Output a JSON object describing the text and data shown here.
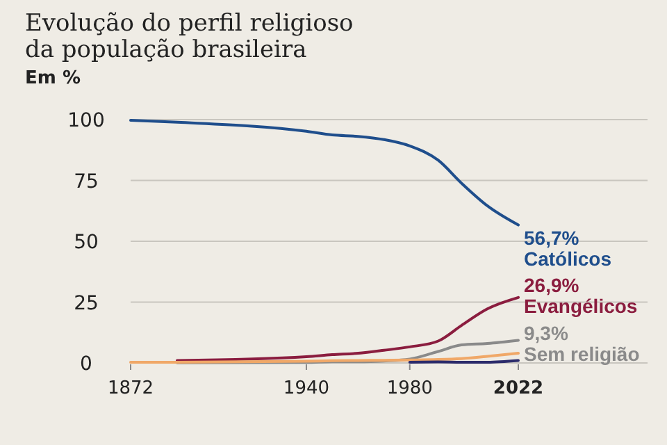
{
  "chart_data": {
    "type": "line",
    "title": "Evolução do perfil religioso da população brasileira",
    "subtitle": "Em %",
    "xlim": [
      1872,
      2072
    ],
    "xticks": [
      1872,
      1940,
      1980,
      2022
    ],
    "ylim": [
      0,
      100
    ],
    "yticks": [
      0,
      25,
      50,
      75,
      100
    ],
    "grid": "y",
    "series": [
      {
        "name": "Católicos",
        "color": "#1f4e8c",
        "x": [
          1872,
          1890,
          1940,
          1950,
          1960,
          1970,
          1980,
          1991,
          2000,
          2010,
          2022
        ],
        "values": [
          99.7,
          98.9,
          95.2,
          93.7,
          93.1,
          91.8,
          89.2,
          83.3,
          73.9,
          64.6,
          56.7
        ],
        "value_labels": [
          null,
          null,
          null,
          null,
          null,
          null,
          null,
          null,
          null,
          null,
          "56,7%"
        ]
      },
      {
        "name": "Evangélicos",
        "color": "#8b1d3f",
        "x": [
          1890,
          1940,
          1950,
          1960,
          1970,
          1980,
          1991,
          2000,
          2010,
          2022
        ],
        "values": [
          1.0,
          2.6,
          3.4,
          4.0,
          5.2,
          6.6,
          9.0,
          15.4,
          22.2,
          26.9
        ],
        "value_labels": [
          null,
          null,
          null,
          null,
          null,
          null,
          null,
          null,
          null,
          "26,9%"
        ]
      },
      {
        "name": "Sem religião",
        "color": "#8a8a8a",
        "x": [
          1890,
          1940,
          1950,
          1960,
          1970,
          1980,
          1991,
          2000,
          2010,
          2022
        ],
        "values": [
          0.1,
          0.2,
          0.5,
          0.5,
          0.8,
          1.6,
          4.7,
          7.4,
          8.0,
          9.3
        ],
        "value_labels": [
          null,
          null,
          null,
          null,
          null,
          null,
          null,
          null,
          null,
          "9,3%"
        ]
      },
      {
        "color": "#f0a868",
        "x": [
          1872,
          1890,
          1940,
          1950,
          1960,
          1970,
          1980,
          1991,
          2000,
          2010,
          2022
        ],
        "values": [
          0.3,
          0.3,
          0.7,
          0.9,
          1.0,
          1.1,
          1.2,
          1.4,
          1.8,
          2.7,
          4.0
        ]
      },
      {
        "color": "#2b2b6b",
        "x": [
          1980,
          1991,
          2000,
          2010,
          2022
        ],
        "values": [
          0.3,
          0.4,
          0.3,
          0.3,
          1.0
        ]
      }
    ]
  }
}
